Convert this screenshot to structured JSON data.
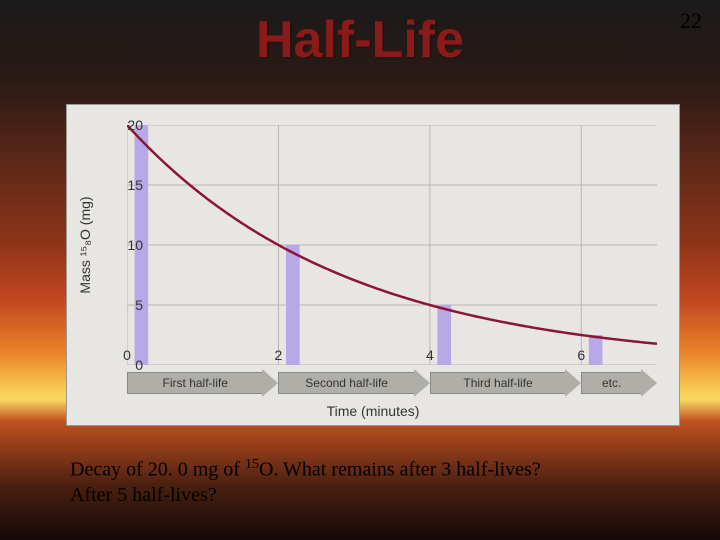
{
  "page_number": "22",
  "title": "Half-Life",
  "chart": {
    "type": "line",
    "background_color": "#e8e6e3",
    "grid_color": "#b8b6b3",
    "ylabel": "Mass ¹⁵₈O (mg)",
    "xlabel": "Time (minutes)",
    "curve_color": "#8b1538",
    "curve_width": 2.5,
    "ylim": [
      0,
      20
    ],
    "xlim": [
      0,
      7
    ],
    "ytick_step": 5,
    "xtick_step": 2,
    "xticks": [
      0,
      2,
      4,
      6
    ],
    "yticks": [
      0,
      5,
      10,
      15,
      20
    ],
    "halflife_period": 2,
    "initial_value": 20,
    "bar_color": "#b8a8e8",
    "bars": [
      {
        "x": 0.1,
        "height": 20
      },
      {
        "x": 2.1,
        "height": 10
      },
      {
        "x": 4.1,
        "height": 5
      },
      {
        "x": 6.1,
        "height": 2.5
      }
    ],
    "bar_width_x": 0.18,
    "arrow_labels": [
      "First half-life",
      "Second half-life",
      "Third half-life",
      "etc."
    ],
    "arrow_bg": "#b0aea8",
    "arrow_fontsize": 12,
    "label_fontsize": 14,
    "tick_fontsize": 14
  },
  "question_line1": "Decay of 20. 0 mg of ",
  "question_isotope_sup": "15",
  "question_isotope": "O",
  "question_line1_end": ". What remains after 3 half-lives?",
  "question_line2": "After 5 half-lives?"
}
